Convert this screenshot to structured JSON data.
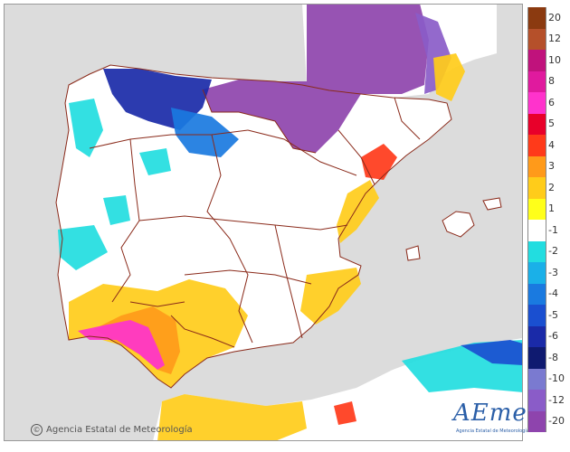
{
  "map": {
    "sea_color": "#dcdcdc",
    "land_color": "#ffffff"
  },
  "legend": {
    "entries": [
      {
        "label": "20",
        "color": "#8b3a10"
      },
      {
        "label": "12",
        "color": "#b5502a"
      },
      {
        "label": "10",
        "color": "#c0127c"
      },
      {
        "label": "8",
        "color": "#e01a9e"
      },
      {
        "label": "6",
        "color": "#ff33cc"
      },
      {
        "label": "5",
        "color": "#e8002a"
      },
      {
        "label": "4",
        "color": "#ff3a1a"
      },
      {
        "label": "3",
        "color": "#ff9a1a"
      },
      {
        "label": "2",
        "color": "#ffcc1a"
      },
      {
        "label": "1",
        "color": "#ffff1a"
      },
      {
        "label": "-1",
        "color": "#ffffff"
      },
      {
        "label": "-2",
        "color": "#22dde0"
      },
      {
        "label": "-3",
        "color": "#1ab0e8"
      },
      {
        "label": "-4",
        "color": "#1a7ae0"
      },
      {
        "label": "-5",
        "color": "#1a4fd0"
      },
      {
        "label": "-6",
        "color": "#1a2aa8"
      },
      {
        "label": "-8",
        "color": "#0f1a70"
      },
      {
        "label": "-10",
        "color": "#7a7ad0"
      },
      {
        "label": "-12",
        "color": "#8a5cc8"
      },
      {
        "label": "-20",
        "color": "#8e44ad"
      }
    ]
  },
  "credit": {
    "text": "Agencia Estatal de Meteorología"
  },
  "logo": {
    "word": "AEmet",
    "subtitle": "Agencia Estatal de Meteorología"
  }
}
